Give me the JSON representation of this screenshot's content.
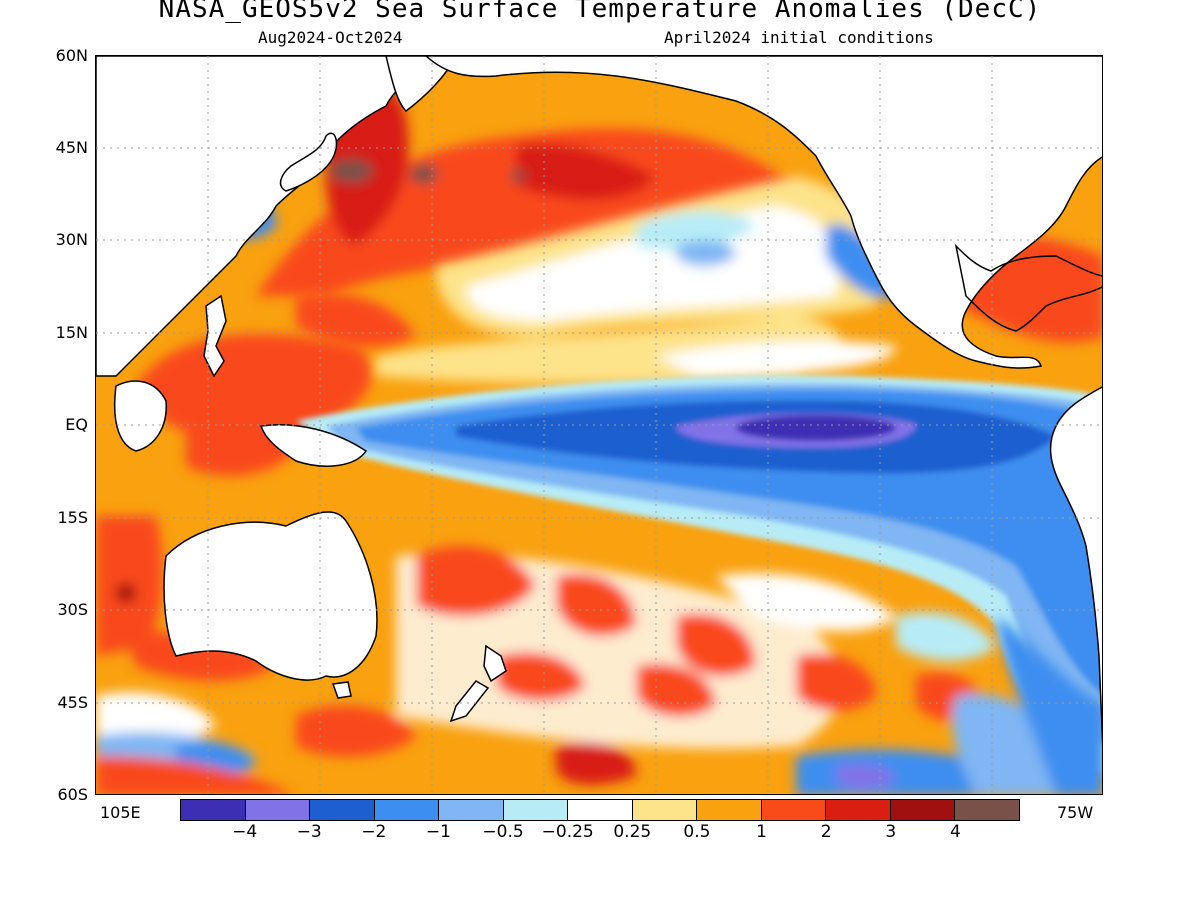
{
  "header": {
    "title": "NASA_GEOS5v2 Sea Surface Temperature Anomalies (DecC)",
    "period": "Aug2024-Oct2024",
    "init": "April2024 initial conditions"
  },
  "axes": {
    "lat_labels": [
      "60N",
      "45N",
      "30N",
      "15N",
      "EQ",
      "15S",
      "30S",
      "45S",
      "60S"
    ],
    "lon_left": "105E",
    "lon_right": "75W"
  },
  "colorbar": {
    "ticks": [
      "-4",
      "-3",
      "-2",
      "-1",
      "-0.5",
      "-0.25",
      "0.25",
      "0.5",
      "1",
      "2",
      "3",
      "4"
    ],
    "colors": [
      "#3d2fb4",
      "#8272e8",
      "#1e5fcf",
      "#3c8ef0",
      "#7fb6f3",
      "#b7ecf7",
      "#ffffff",
      "#fde38a",
      "#f9a10f",
      "#f94a1a",
      "#d81f12",
      "#a01010",
      "#7a5148"
    ]
  },
  "map_colors": {
    "land": "#ffffff",
    "coast": "#000000",
    "grid": "#9a9a9a"
  }
}
